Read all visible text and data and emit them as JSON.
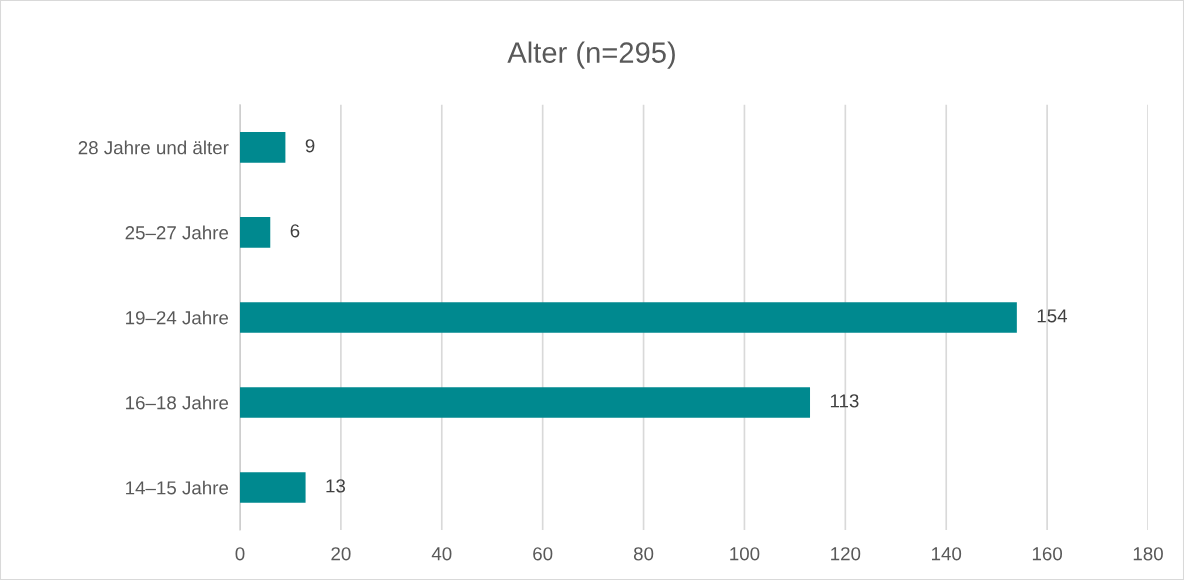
{
  "chart_data": {
    "type": "bar",
    "orientation": "horizontal",
    "title": "Alter (n=295)",
    "categories": [
      "28 Jahre und älter",
      "25–27 Jahre",
      "19–24 Jahre",
      "16–18 Jahre",
      "14–15 Jahre"
    ],
    "values": [
      9,
      6,
      154,
      113,
      13
    ],
    "color": "#00898f",
    "xlim": [
      0,
      180
    ],
    "xticks": [
      0,
      20,
      40,
      60,
      80,
      100,
      120,
      140,
      160,
      180
    ],
    "grid": "x",
    "data_labels": true,
    "legend": false
  }
}
